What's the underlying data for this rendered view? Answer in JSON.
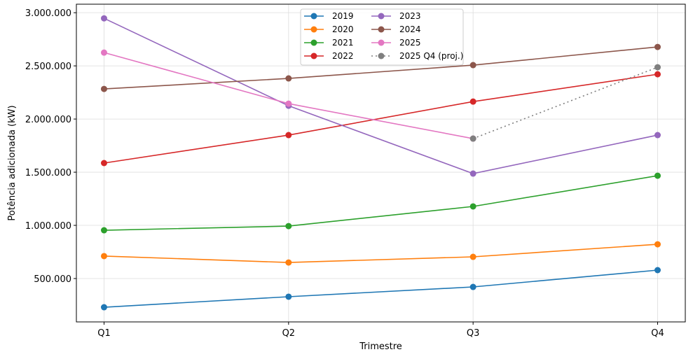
{
  "chart_data": {
    "type": "line",
    "title": "",
    "xlabel": "Trimestre",
    "ylabel": "Potência adicionada (kW)",
    "categories": [
      "Q1",
      "Q2",
      "Q3",
      "Q4"
    ],
    "ylim": [
      92000,
      3080000
    ],
    "yticks": [
      500000,
      1000000,
      1500000,
      2000000,
      2500000,
      3000000
    ],
    "ytick_labels": [
      "500.000",
      "1.000.000",
      "1.500.000",
      "2.000.000",
      "2.500.000",
      "3.000.000"
    ],
    "grid": true,
    "legend_placement": "top-center",
    "series": [
      {
        "name": "2019",
        "color": "#1f77b4",
        "values": [
          230000,
          329000,
          421000,
          579000
        ]
      },
      {
        "name": "2020",
        "color": "#ff7f0e",
        "values": [
          711000,
          651000,
          704000,
          822000
        ]
      },
      {
        "name": "2021",
        "color": "#2ca02c",
        "values": [
          954000,
          993000,
          1178000,
          1467000
        ]
      },
      {
        "name": "2022",
        "color": "#d62728",
        "values": [
          1586000,
          1849000,
          2164000,
          2421000
        ]
      },
      {
        "name": "2023",
        "color": "#9467bd",
        "values": [
          2947000,
          2125000,
          1487000,
          1849000
        ]
      },
      {
        "name": "2024",
        "color": "#8c564b",
        "values": [
          2283000,
          2382000,
          2507000,
          2678000
        ]
      },
      {
        "name": "2025",
        "color": "#e377c2",
        "values": [
          2625000,
          2145000,
          1816000,
          null
        ]
      },
      {
        "name": "2025 Q4 (proj.)",
        "color": "#7f7f7f",
        "dashed": true,
        "values": [
          null,
          null,
          1816000,
          2487000
        ]
      }
    ]
  }
}
